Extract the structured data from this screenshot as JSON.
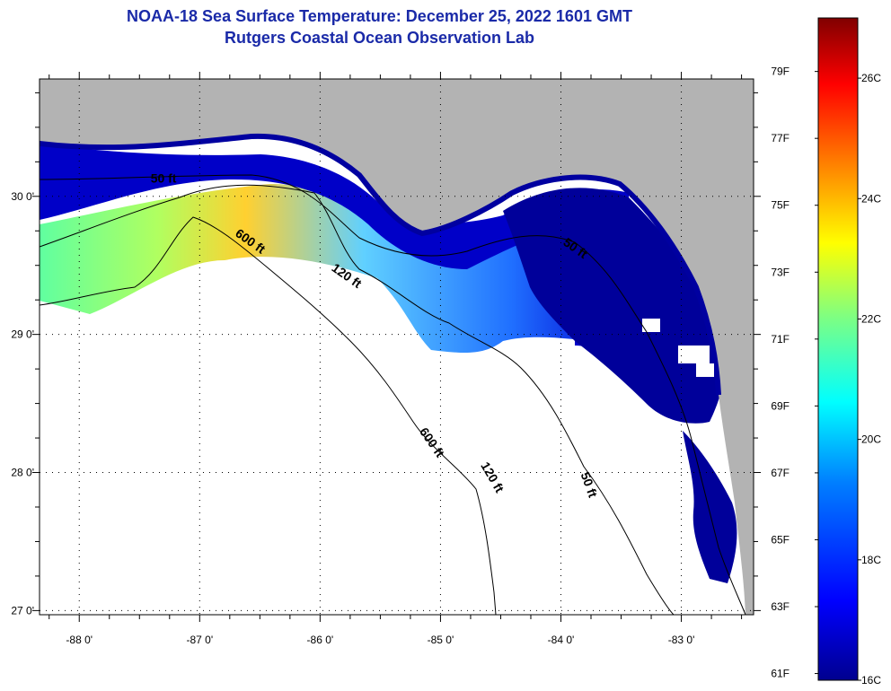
{
  "title": "NOAA-18 Sea Surface Temperature:  December 25, 2022 1601 GMT",
  "subtitle": "Rutgers Coastal Ocean Observation Lab",
  "map": {
    "lon_labels": [
      "-88 0'",
      "-87 0'",
      "-86 0'",
      "-85 0'",
      "-84 0'",
      "-83 0'"
    ],
    "lon_values": [
      -88,
      -87,
      -86,
      -85,
      -84,
      -83
    ],
    "lat_labels": [
      "30 0'",
      "29 0'",
      "28 0'",
      "27 0'"
    ],
    "lat_values": [
      30,
      29,
      28,
      27
    ],
    "lon_range": [
      -88.33,
      -82.4
    ],
    "lat_range": [
      26.97,
      30.85
    ],
    "contour_labels": [
      {
        "text": "50 ft",
        "lon": -87.3,
        "lat": 30.1
      },
      {
        "text": "600 ft",
        "lon": -86.6,
        "lat": 29.65
      },
      {
        "text": "120 ft",
        "lon": -85.8,
        "lat": 29.4
      },
      {
        "text": "50 ft",
        "lon": -83.9,
        "lat": 29.6
      },
      {
        "text": "600 ft",
        "lon": -85.1,
        "lat": 28.2
      },
      {
        "text": "120 ft",
        "lon": -84.6,
        "lat": 27.95
      },
      {
        "text": "50 ft",
        "lon": -83.8,
        "lat": 27.9
      }
    ],
    "colors": {
      "land": "#b3b3b3",
      "no_data": "#ffffff",
      "contour": "#000000"
    }
  },
  "colorbar": {
    "f_labels": [
      "79F",
      "77F",
      "75F",
      "73F",
      "71F",
      "69F",
      "67F",
      "65F",
      "63F",
      "61F"
    ],
    "f_values": [
      79,
      77,
      75,
      73,
      71,
      69,
      67,
      65,
      63,
      61
    ],
    "c_labels": [
      "26C",
      "24C",
      "22C",
      "20C",
      "18C",
      "16C"
    ],
    "c_values": [
      26,
      24,
      22,
      20,
      18,
      16
    ],
    "range_c": [
      16,
      27
    ],
    "colormap": [
      "#00008f",
      "#0000ff",
      "#0080ff",
      "#00ffff",
      "#80ff80",
      "#ffff00",
      "#ff8000",
      "#ff0000",
      "#800000"
    ]
  }
}
